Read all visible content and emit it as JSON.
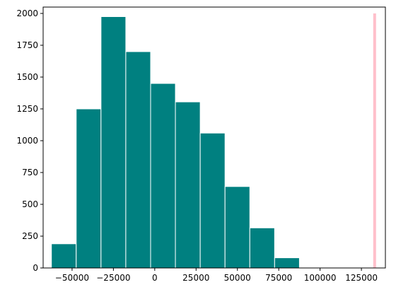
{
  "chart_data": {
    "type": "bar",
    "title": "",
    "xlabel": "",
    "ylabel": "",
    "xlim": [
      -67500,
      139500
    ],
    "ylim": [
      0,
      2050
    ],
    "grid": false,
    "bin_edges": [
      -62500,
      -47500,
      -32500,
      -17500,
      -2500,
      12500,
      27500,
      42500,
      57500,
      72500,
      87500
    ],
    "values": [
      190,
      1250,
      1975,
      1700,
      1450,
      1305,
      1060,
      640,
      315,
      80
    ],
    "bar_color": "#008080",
    "bar_edge_color": "#ffffff",
    "marker": {
      "x": 133000,
      "height": 2000,
      "color": "#ffc0cb"
    },
    "x_ticks": [
      {
        "value": -50000,
        "label": "−50000"
      },
      {
        "value": -25000,
        "label": "−25000"
      },
      {
        "value": 0,
        "label": "0"
      },
      {
        "value": 25000,
        "label": "25000"
      },
      {
        "value": 50000,
        "label": "50000"
      },
      {
        "value": 75000,
        "label": "75000"
      },
      {
        "value": 100000,
        "label": "100000"
      },
      {
        "value": 125000,
        "label": "125000"
      }
    ],
    "y_ticks": [
      {
        "value": 0,
        "label": "0"
      },
      {
        "value": 250,
        "label": "250"
      },
      {
        "value": 500,
        "label": "500"
      },
      {
        "value": 750,
        "label": "750"
      },
      {
        "value": 1000,
        "label": "1000"
      },
      {
        "value": 1250,
        "label": "1250"
      },
      {
        "value": 1500,
        "label": "1500"
      },
      {
        "value": 1750,
        "label": "1750"
      },
      {
        "value": 2000,
        "label": "2000"
      }
    ]
  }
}
